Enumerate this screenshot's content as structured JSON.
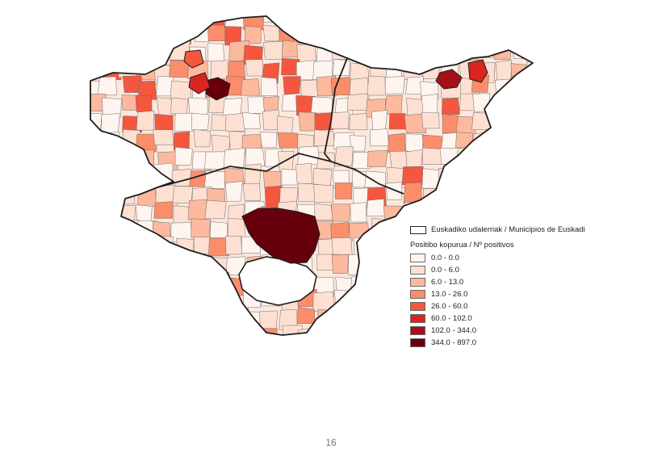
{
  "map": {
    "layer_label": "Euskadiko udalerriak / Municipios de Euskadi",
    "legend_title": "Positibo kopurua / Nº positivos",
    "outline_color": "#1e1e1e",
    "classes": [
      {
        "label": "0.0 - 0.0",
        "color": "#fff5f0"
      },
      {
        "label": "0.0 - 6.0",
        "color": "#fde0d2"
      },
      {
        "label": "6.0 - 13.0",
        "color": "#fcb99e"
      },
      {
        "label": "13.0 - 26.0",
        "color": "#fb8d6b"
      },
      {
        "label": "26.0 - 60.0",
        "color": "#f4563e"
      },
      {
        "label": "60.0 - 102.0",
        "color": "#d9251f"
      },
      {
        "label": "102.0 - 344.0",
        "color": "#a50f15"
      },
      {
        "label": "344.0 - 897.0",
        "color": "#67000d"
      }
    ]
  },
  "footer": {
    "page_number": "16"
  }
}
